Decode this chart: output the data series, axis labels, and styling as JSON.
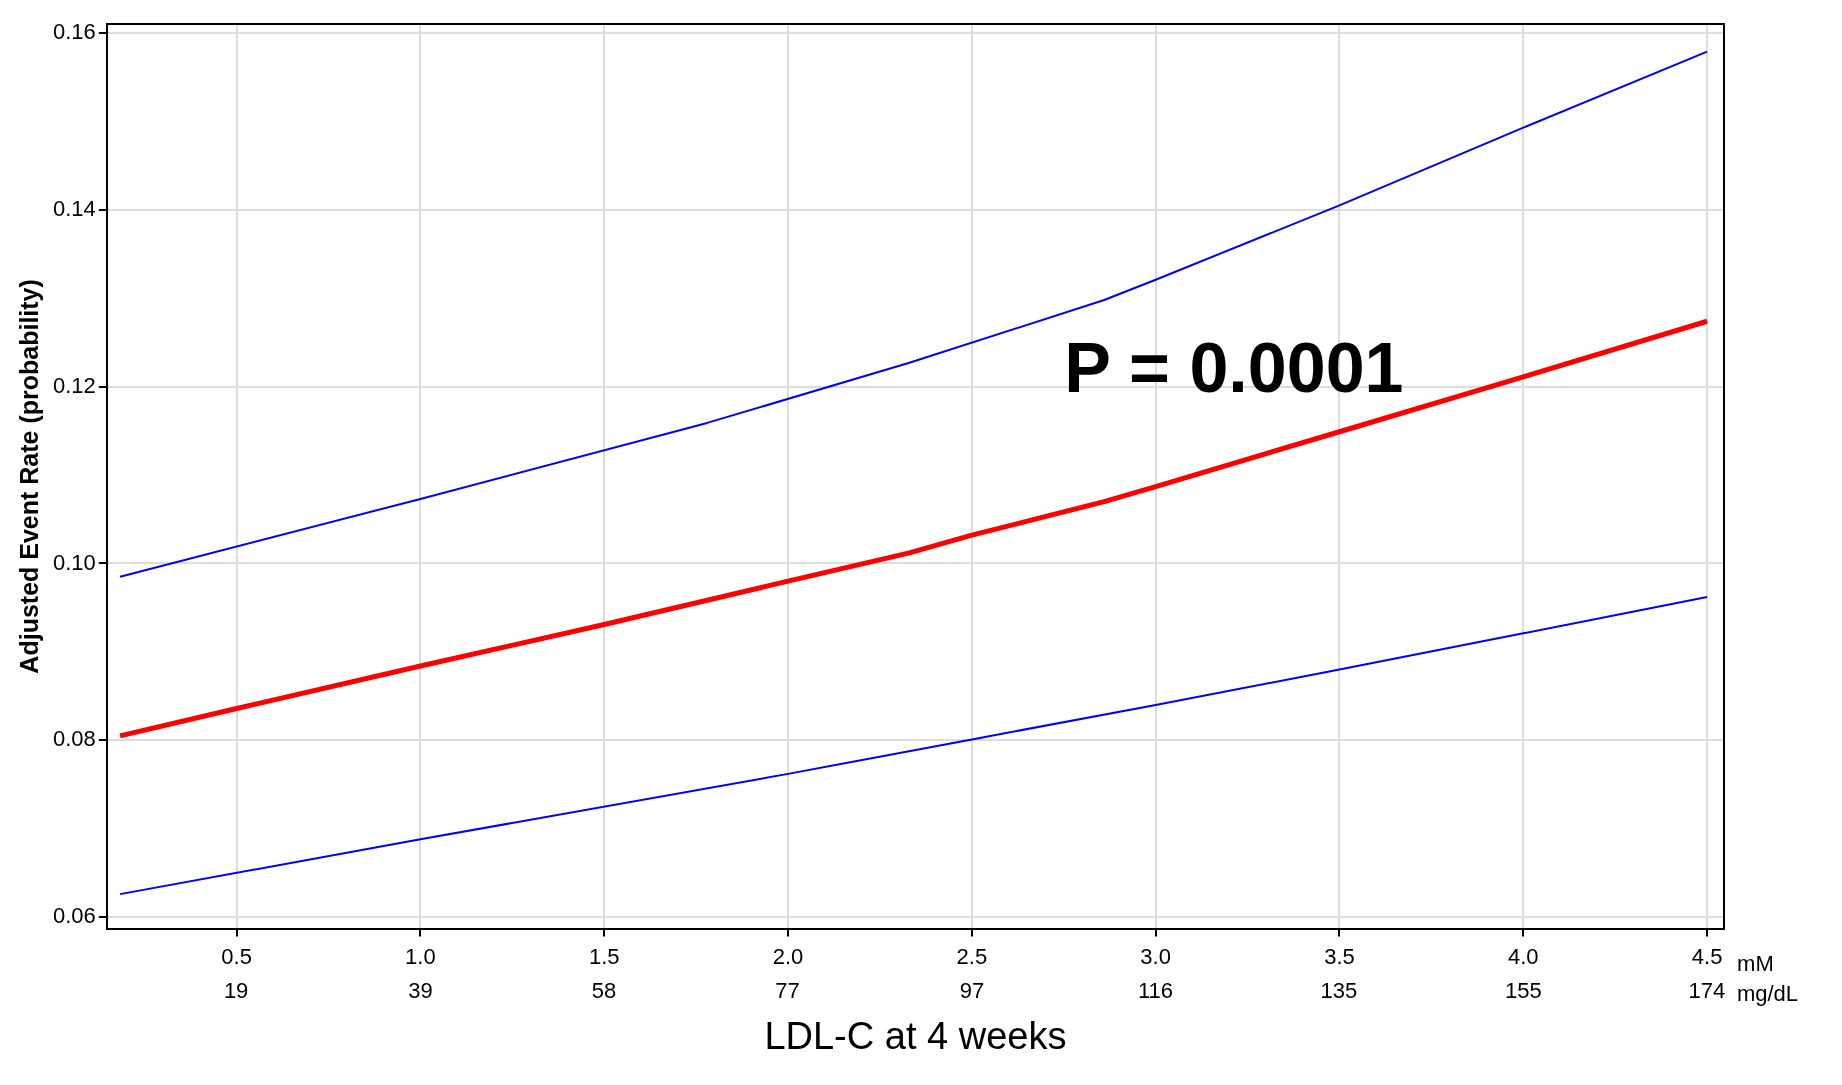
{
  "chart_data": {
    "type": "line",
    "xlabel": "LDL-C at 4 weeks",
    "ylabel": "Adjusted Event Rate (probability)",
    "xlim": [
      0.147,
      4.546
    ],
    "xticks": [
      {
        "value": 0.5,
        "label": "0.5"
      },
      {
        "value": 1,
        "label": "1.0"
      },
      {
        "value": 1.5,
        "label": "1.5"
      },
      {
        "value": 2,
        "label": "2.0"
      },
      {
        "value": 2.5,
        "label": "2.5"
      },
      {
        "value": 3,
        "label": "3.0"
      },
      {
        "value": 3.5,
        "label": "3.5"
      },
      {
        "value": 4,
        "label": "4.0"
      },
      {
        "value": 4.5,
        "label": "4.5"
      }
    ],
    "x2lim": [
      5.7,
      175.8
    ],
    "x2ticks": [
      {
        "value": 19.3,
        "label": "19"
      },
      {
        "value": 38.7,
        "label": "39"
      },
      {
        "value": 58,
        "label": "58"
      },
      {
        "value": 77.3,
        "label": "77"
      },
      {
        "value": 96.7,
        "label": "97"
      },
      {
        "value": 116,
        "label": "116"
      },
      {
        "value": 135.3,
        "label": "135"
      },
      {
        "value": 154.7,
        "label": "155"
      },
      {
        "value": 174,
        "label": "174"
      }
    ],
    "ylim": [
      0.0587,
      0.161
    ],
    "yticks": [
      {
        "value": 0.06,
        "label": "0.06"
      },
      {
        "value": 0.08,
        "label": "0.08"
      },
      {
        "value": 0.1,
        "label": "0.10"
      },
      {
        "value": 0.12,
        "label": "0.12"
      },
      {
        "value": 0.14,
        "label": "0.14"
      },
      {
        "value": 0.16,
        "label": "0.16"
      }
    ],
    "grid": true,
    "legend": false,
    "marker": "none",
    "line_style": "solid",
    "annotations": [
      "P = 0.0001",
      "mM",
      "mg/dL"
    ],
    "series": [
      {
        "color": "#ff0000",
        "x": [
          0.183,
          0.5,
          1.0,
          1.5,
          2.0,
          2.33,
          2.5,
          2.86,
          3.0,
          3.5,
          4.0,
          4.5
        ],
        "values": [
          0.0805,
          0.0836,
          0.0884,
          0.0931,
          0.098,
          0.1012,
          0.1032,
          0.107,
          0.1087,
          0.1149,
          0.1211,
          0.1274
        ]
      },
      {
        "color": "#0000ff",
        "x": [
          0.183,
          1.0,
          1.78,
          2.33,
          2.86,
          3.0,
          3.5,
          4.0,
          4.5
        ],
        "values": [
          0.0985,
          0.1073,
          0.1159,
          0.1227,
          0.1298,
          0.1321,
          0.1405,
          0.1493,
          0.1579
        ]
      },
      {
        "color": "#0000ff",
        "x": [
          0.183,
          1.0,
          2.0,
          2.5,
          3.0,
          3.5,
          4.0,
          4.5
        ],
        "values": [
          0.0626,
          0.0688,
          0.0762,
          0.0801,
          0.084,
          0.088,
          0.0921,
          0.0962
        ]
      }
    ]
  }
}
